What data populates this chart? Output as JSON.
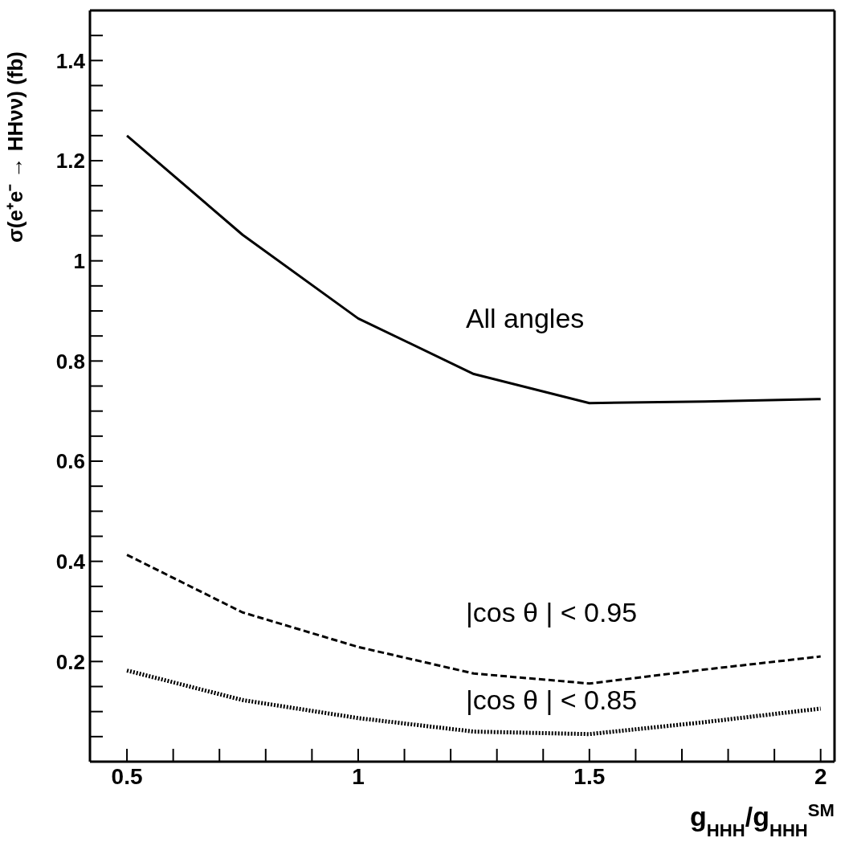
{
  "chart_data": {
    "type": "line",
    "ylabel": "σ(e⁺e⁻ → HHνν) (fb)",
    "xlabel": "g$_{HHH}$/g$_{HHH}$$^{SM}$",
    "x": [
      0.5,
      0.75,
      1,
      1.25,
      1.5,
      1.75,
      2
    ],
    "series": [
      {
        "name": "All angles",
        "color": "#000000",
        "line_style": "solid",
        "values": [
          1.25,
          1.052,
          0.885,
          0.774,
          0.716,
          0.719,
          0.724
        ]
      },
      {
        "name": "|cos θ | < 0.95",
        "color": "#000000",
        "line_style": "dashed",
        "values": [
          0.413,
          0.298,
          0.229,
          0.176,
          0.156,
          0.184,
          0.21
        ]
      },
      {
        "name": "|cos θ | < 0.85",
        "color": "#000000",
        "line_style": "dotted",
        "values": [
          0.182,
          0.123,
          0.087,
          0.06,
          0.055,
          0.079,
          0.106
        ]
      }
    ],
    "xlim": [
      0.42,
      2.03
    ],
    "ylim": [
      0,
      1.5
    ],
    "xticks": [
      0.5,
      {
        "value": 0.6,
        "label": null
      },
      {
        "value": 0.7,
        "label": null
      },
      {
        "value": 0.8,
        "label": null
      },
      {
        "value": 0.9,
        "label": null
      },
      1,
      {
        "value": 1.1,
        "label": null
      },
      {
        "value": 1.2,
        "label": null
      },
      {
        "value": 1.3,
        "label": null
      },
      {
        "value": 1.4,
        "label": null
      },
      1.5,
      {
        "value": 1.6,
        "label": null
      },
      {
        "value": 1.7,
        "label": null
      },
      {
        "value": 1.8,
        "label": null
      },
      {
        "value": 1.9,
        "label": null
      },
      2
    ],
    "yticks": [
      {
        "value": 0.05,
        "label": null
      },
      {
        "value": 0.1,
        "label": null
      },
      {
        "value": 0.15,
        "label": null
      },
      0.2,
      {
        "value": 0.25,
        "label": null
      },
      {
        "value": 0.3,
        "label": null
      },
      {
        "value": 0.35,
        "label": null
      },
      0.4,
      {
        "value": 0.45,
        "label": null
      },
      {
        "value": 0.5,
        "label": null
      },
      {
        "value": 0.55,
        "label": null
      },
      0.6,
      {
        "value": 0.65,
        "label": null
      },
      {
        "value": 0.7,
        "label": null
      },
      {
        "value": 0.75,
        "label": null
      },
      0.8,
      {
        "value": 0.85,
        "label": null
      },
      {
        "value": 0.9,
        "label": null
      },
      {
        "value": 0.95,
        "label": null
      },
      1,
      {
        "value": 1.05,
        "label": null
      },
      {
        "value": 1.1,
        "label": null
      },
      {
        "value": 1.15,
        "label": null
      },
      1.2,
      {
        "value": 1.25,
        "label": null
      },
      {
        "value": 1.3,
        "label": null
      },
      {
        "value": 1.35,
        "label": null
      },
      1.4,
      {
        "value": 1.45,
        "label": null
      }
    ],
    "grid": false,
    "legend": false,
    "marker": "none"
  }
}
